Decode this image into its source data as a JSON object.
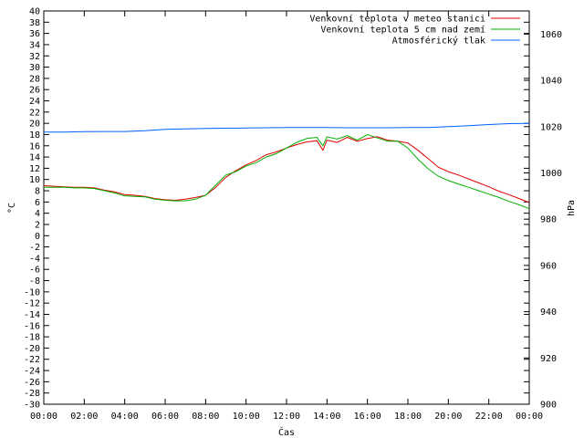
{
  "chart_data": {
    "type": "line",
    "title": "",
    "xlabel": "Čas",
    "ylabel": "°C",
    "y2label": "hPa",
    "xlim": [
      0,
      24
    ],
    "ylim": [
      -30,
      40
    ],
    "y2lim": [
      900,
      1070
    ],
    "x_ticks": [
      "00:00",
      "02:00",
      "04:00",
      "06:00",
      "08:00",
      "10:00",
      "12:00",
      "14:00",
      "16:00",
      "18:00",
      "20:00",
      "22:00",
      "00:00"
    ],
    "y_ticks": [
      -30,
      -28,
      -26,
      -24,
      -22,
      -20,
      -18,
      -16,
      -14,
      -12,
      -10,
      -8,
      -6,
      -4,
      -2,
      0,
      2,
      4,
      6,
      8,
      10,
      12,
      14,
      16,
      18,
      20,
      22,
      24,
      26,
      28,
      30,
      32,
      34,
      36,
      38,
      40
    ],
    "y_tick_labels": [
      "-30",
      "-28",
      "-26",
      "-24",
      "-22",
      "-20",
      "-18",
      "-16",
      "-14",
      "-12",
      "-10",
      "-8",
      "-6",
      "-4",
      "-2",
      "0",
      "2",
      "4",
      "6",
      "8",
      "10",
      "12",
      "14",
      "16",
      "18",
      "20",
      "22",
      "24",
      "26",
      "28",
      "30",
      "32",
      "34",
      "36",
      "38",
      "40"
    ],
    "y2_ticks": [
      900,
      920,
      940,
      960,
      980,
      1000,
      1020,
      1040,
      1060
    ],
    "y2_tick_labels": [
      "900",
      "920",
      "940",
      "960",
      "980",
      "1000",
      "1020",
      "1040",
      "1060"
    ],
    "grid": false,
    "legend_position": "top-right",
    "series": [
      {
        "name": "Venkovní teplota v meteo stanici",
        "color": "#e00000",
        "axis": "left",
        "x": [
          0,
          0.5,
          1,
          1.5,
          2,
          2.5,
          3,
          3.5,
          4,
          4.5,
          5,
          5.5,
          6,
          6.5,
          7,
          7.5,
          8,
          8.5,
          9,
          9.5,
          10,
          10.5,
          11,
          11.5,
          12,
          12.5,
          13,
          13.5,
          13.8,
          14,
          14.5,
          15,
          15.5,
          16,
          16.5,
          17,
          17.5,
          18,
          18.5,
          19,
          19.5,
          20,
          20.5,
          21,
          21.5,
          22,
          22.5,
          23,
          23.5,
          24
        ],
        "y": [
          8.9,
          8.8,
          8.7,
          8.6,
          8.6,
          8.5,
          8.1,
          7.8,
          7.3,
          7.2,
          7.0,
          6.6,
          6.4,
          6.3,
          6.5,
          6.8,
          7.2,
          8.6,
          10.4,
          11.6,
          12.6,
          13.4,
          14.4,
          14.9,
          15.6,
          16.2,
          16.7,
          16.9,
          15.2,
          17.0,
          16.6,
          17.5,
          16.8,
          17.3,
          17.6,
          17.0,
          16.8,
          16.5,
          15.2,
          13.7,
          12.2,
          11.4,
          10.8,
          10.1,
          9.4,
          8.7,
          7.9,
          7.3,
          6.6,
          5.9
        ]
      },
      {
        "name": "Venkovní teplota 5 cm nad zemí",
        "color": "#00b000",
        "axis": "left",
        "x": [
          0,
          0.5,
          1,
          1.5,
          2,
          2.5,
          3,
          3.5,
          4,
          4.5,
          5,
          5.5,
          6,
          6.5,
          7,
          7.5,
          8,
          8.5,
          9,
          9.5,
          10,
          10.5,
          11,
          11.5,
          12,
          12.5,
          13,
          13.5,
          13.8,
          14,
          14.5,
          15,
          15.5,
          16,
          16.5,
          17,
          17.5,
          18,
          18.5,
          19,
          19.5,
          20,
          20.5,
          21,
          21.5,
          22,
          22.5,
          23,
          23.5,
          24
        ],
        "y": [
          8.6,
          8.6,
          8.6,
          8.5,
          8.5,
          8.4,
          8.0,
          7.6,
          7.1,
          7.0,
          6.9,
          6.5,
          6.3,
          6.2,
          6.2,
          6.5,
          7.2,
          9.0,
          10.8,
          11.4,
          12.4,
          13.0,
          14.0,
          14.6,
          15.6,
          16.6,
          17.3,
          17.5,
          16.0,
          17.6,
          17.2,
          17.8,
          17.0,
          18.0,
          17.4,
          16.8,
          16.8,
          15.6,
          13.6,
          11.9,
          10.6,
          9.8,
          9.2,
          8.6,
          8.0,
          7.4,
          6.8,
          6.1,
          5.5,
          4.8
        ]
      },
      {
        "name": "Atmosférický tlak",
        "color": "#0060ff",
        "axis": "right",
        "x": [
          0,
          1,
          2,
          3,
          4,
          5,
          6,
          7,
          8,
          9,
          10,
          11,
          12,
          13,
          14,
          15,
          16,
          17,
          18,
          19,
          20,
          21,
          22,
          23,
          24
        ],
        "y": [
          1017.6,
          1017.6,
          1017.8,
          1017.9,
          1017.9,
          1018.2,
          1018.8,
          1019.0,
          1019.2,
          1019.3,
          1019.4,
          1019.5,
          1019.6,
          1019.6,
          1019.6,
          1019.5,
          1019.5,
          1019.5,
          1019.6,
          1019.6,
          1020.0,
          1020.4,
          1020.9,
          1021.3,
          1021.4
        ]
      }
    ]
  }
}
